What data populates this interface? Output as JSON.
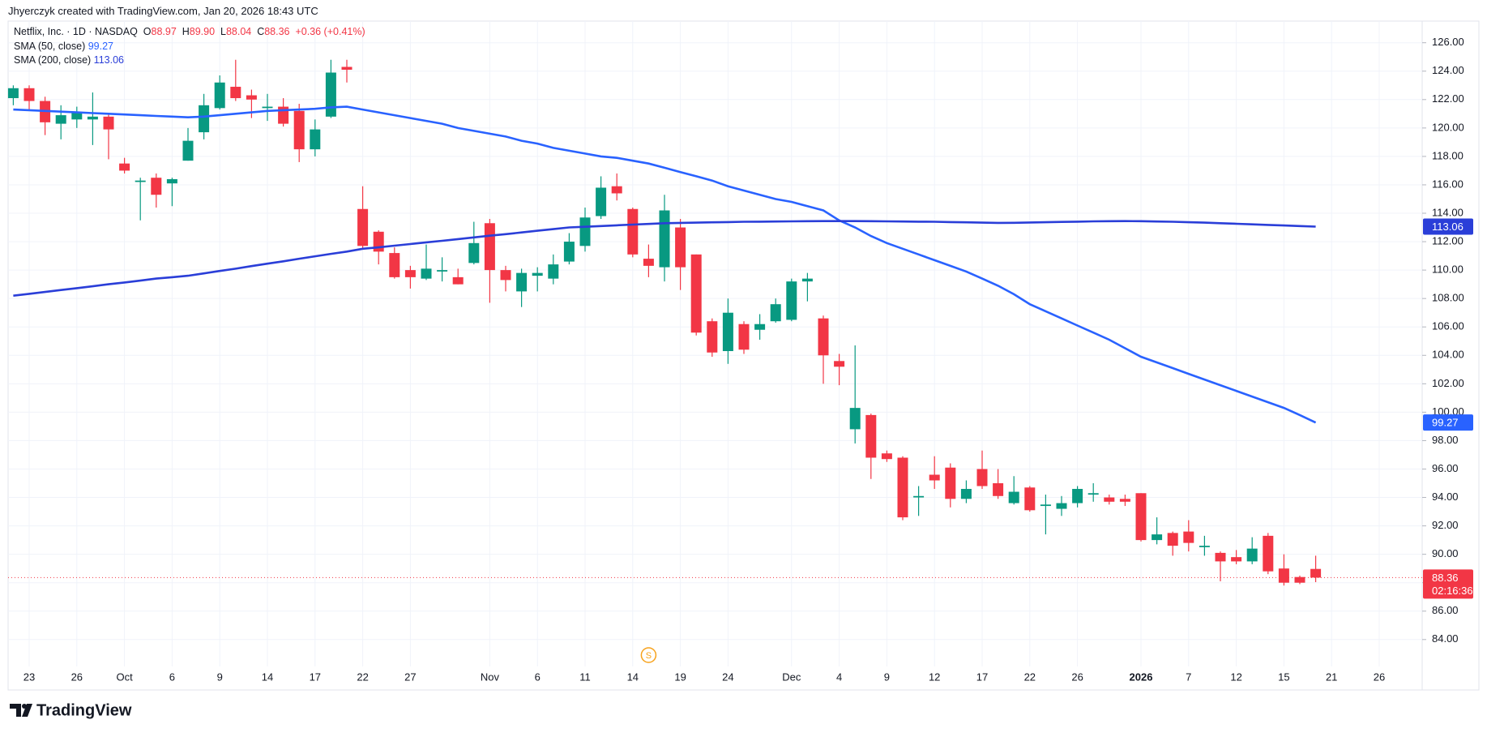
{
  "header": {
    "text": "Jhyerczyk created with TradingView.com, Jan 20, 2026 18:43 UTC"
  },
  "chart_data": {
    "type": "candlestick",
    "symbol": "Netflix, Inc. · 1D · NASDAQ",
    "legend_keys": [
      "O",
      "H",
      "L",
      "C"
    ],
    "last_bar_labels": {
      "open": "88.97",
      "high": "89.90",
      "low": "88.04",
      "close": "88.36",
      "change": "+0.36 (+0.41%)"
    },
    "countdown": "02:16:36",
    "up_color": "#089981",
    "down_color": "#f23645",
    "grid": true,
    "categories": [
      null,
      "23",
      null,
      null,
      "26",
      null,
      null,
      "Oct",
      null,
      null,
      "6",
      null,
      null,
      "9",
      null,
      null,
      "14",
      null,
      null,
      "17",
      null,
      null,
      "22",
      null,
      null,
      "27",
      null,
      null,
      null,
      null,
      "Nov",
      null,
      null,
      "6",
      null,
      null,
      "11",
      null,
      null,
      "14",
      null,
      null,
      "19",
      null,
      null,
      "24",
      null,
      null,
      null,
      "Dec",
      null,
      null,
      "4",
      null,
      null,
      "9",
      null,
      null,
      "12",
      null,
      null,
      "17",
      null,
      null,
      "22",
      null,
      null,
      "26",
      null,
      null,
      null,
      "2026",
      null,
      null,
      "7",
      null,
      null,
      "12",
      null,
      null,
      "15",
      null,
      null,
      "21",
      null,
      null,
      "26"
    ],
    "open": [
      122.1,
      122.8,
      121.9,
      120.3,
      120.6,
      120.6,
      120.8,
      117.5,
      116.2,
      116.5,
      116.1,
      117.7,
      119.7,
      121.4,
      122.9,
      122.3,
      121.4,
      121.5,
      121.2,
      118.5,
      120.8,
      124.3,
      114.3,
      112.7,
      111.2,
      110.0,
      109.4,
      109.9,
      109.5,
      110.5,
      113.3,
      110.0,
      108.5,
      109.6,
      109.4,
      110.6,
      111.7,
      113.8,
      115.9,
      114.3,
      110.8,
      110.2,
      113.0,
      111.1,
      106.4,
      104.3,
      106.2,
      105.8,
      106.4,
      106.5,
      109.2,
      106.6,
      103.6,
      98.8,
      99.8,
      97.1,
      96.8,
      94.0,
      95.6,
      96.1,
      93.9,
      96.0,
      95.0,
      93.6,
      94.7,
      93.4,
      93.2,
      93.6,
      94.2,
      94.0,
      93.9,
      94.3,
      91.0,
      91.5,
      91.6,
      90.5,
      90.1,
      89.8,
      89.5,
      91.3,
      89.0,
      88.4,
      88.97,
      null,
      null,
      null,
      null
    ],
    "high": [
      123.0,
      123.0,
      122.2,
      121.6,
      121.5,
      122.5,
      121.0,
      117.9,
      116.5,
      116.8,
      116.5,
      120.0,
      122.4,
      123.7,
      124.8,
      122.7,
      122.4,
      122.1,
      121.7,
      120.6,
      124.8,
      124.8,
      115.9,
      112.8,
      111.6,
      110.3,
      111.8,
      110.9,
      110.1,
      113.4,
      113.6,
      110.3,
      110.1,
      110.2,
      111.1,
      112.6,
      114.4,
      116.6,
      116.8,
      114.4,
      111.8,
      115.3,
      113.6,
      111.1,
      106.6,
      108.0,
      106.4,
      106.9,
      108.0,
      109.4,
      109.8,
      106.8,
      104.1,
      104.7,
      99.9,
      97.3,
      96.9,
      94.8,
      96.9,
      96.4,
      95.2,
      97.3,
      96.0,
      95.5,
      94.8,
      94.2,
      94.1,
      94.8,
      95.0,
      94.2,
      94.2,
      94.3,
      92.6,
      91.6,
      92.4,
      91.3,
      90.2,
      90.3,
      91.2,
      91.5,
      90.0,
      88.5,
      89.9,
      null,
      null,
      null,
      null
    ],
    "low": [
      121.6,
      121.3,
      119.5,
      119.2,
      120.0,
      118.8,
      117.8,
      116.8,
      113.5,
      114.4,
      114.5,
      117.7,
      119.2,
      121.3,
      121.9,
      120.7,
      120.5,
      120.1,
      117.6,
      118.0,
      120.7,
      123.2,
      111.5,
      110.4,
      109.4,
      108.7,
      109.3,
      109.2,
      109.0,
      110.4,
      107.7,
      108.5,
      107.4,
      108.5,
      109.0,
      110.4,
      111.3,
      113.6,
      114.9,
      110.9,
      109.5,
      109.2,
      108.6,
      105.4,
      103.9,
      103.4,
      104.1,
      105.1,
      106.3,
      106.4,
      107.8,
      102.0,
      101.9,
      97.8,
      95.3,
      96.5,
      92.4,
      92.7,
      94.6,
      93.3,
      93.6,
      94.6,
      93.9,
      93.5,
      93.0,
      91.4,
      92.7,
      93.3,
      93.7,
      93.5,
      93.4,
      90.9,
      90.7,
      89.9,
      90.2,
      89.9,
      88.1,
      89.3,
      89.3,
      88.6,
      87.8,
      87.9,
      88.04,
      null,
      null,
      null,
      null
    ],
    "close": [
      122.8,
      121.9,
      120.4,
      120.9,
      121.1,
      120.8,
      119.9,
      117.0,
      116.3,
      115.3,
      116.4,
      119.1,
      121.6,
      123.2,
      122.1,
      122.0,
      121.5,
      120.3,
      118.5,
      119.9,
      123.9,
      124.1,
      111.7,
      111.3,
      109.5,
      109.5,
      110.1,
      110.0,
      109.0,
      111.9,
      110.0,
      109.3,
      109.8,
      109.8,
      110.4,
      112.0,
      113.7,
      115.8,
      115.4,
      111.1,
      110.3,
      114.2,
      110.2,
      105.6,
      104.2,
      107.0,
      104.4,
      106.2,
      107.6,
      109.2,
      109.4,
      104.0,
      103.2,
      100.3,
      96.8,
      96.7,
      92.6,
      94.1,
      95.2,
      93.9,
      94.6,
      94.8,
      94.1,
      94.4,
      93.1,
      93.5,
      93.6,
      94.6,
      94.3,
      93.7,
      93.7,
      91.0,
      91.4,
      90.6,
      90.8,
      90.6,
      89.5,
      89.5,
      90.4,
      88.8,
      88.0,
      88.0,
      88.36,
      null,
      null,
      null,
      null
    ],
    "series": [
      {
        "name": "SMA (50, close)",
        "color": "#2962ff",
        "values": [
          121.3,
          121.25,
          121.2,
          121.15,
          121.1,
          121.05,
          121.0,
          120.95,
          120.9,
          120.85,
          120.8,
          120.75,
          120.8,
          120.9,
          121.0,
          121.1,
          121.2,
          121.25,
          121.3,
          121.35,
          121.45,
          121.5,
          121.3,
          121.1,
          120.9,
          120.7,
          120.5,
          120.3,
          120.0,
          119.8,
          119.6,
          119.4,
          119.1,
          118.9,
          118.6,
          118.4,
          118.2,
          118.0,
          117.9,
          117.7,
          117.5,
          117.2,
          116.9,
          116.6,
          116.3,
          115.9,
          115.6,
          115.3,
          115.0,
          114.8,
          114.5,
          114.2,
          113.5,
          113.0,
          112.4,
          111.9,
          111.5,
          111.1,
          110.7,
          110.3,
          109.9,
          109.4,
          108.9,
          108.3,
          107.6,
          107.1,
          106.6,
          106.1,
          105.6,
          105.1,
          104.5,
          103.9,
          103.5,
          103.1,
          102.7,
          102.3,
          101.9,
          101.5,
          101.1,
          100.7,
          100.3,
          99.8,
          99.27,
          null,
          null,
          null,
          null
        ]
      },
      {
        "name": "SMA (200, close)",
        "color": "#2a3ed8",
        "values": [
          108.2,
          108.33,
          108.46,
          108.6,
          108.73,
          108.86,
          109.0,
          109.13,
          109.26,
          109.4,
          109.5,
          109.6,
          109.77,
          109.94,
          110.1,
          110.28,
          110.45,
          110.62,
          110.8,
          110.97,
          111.14,
          111.3,
          111.5,
          111.6,
          111.72,
          111.83,
          111.95,
          112.06,
          112.18,
          112.3,
          112.42,
          112.53,
          112.65,
          112.77,
          112.88,
          113.0,
          113.05,
          113.1,
          113.15,
          113.2,
          113.25,
          113.3,
          113.32,
          113.34,
          113.36,
          113.38,
          113.4,
          113.41,
          113.42,
          113.43,
          113.44,
          113.45,
          113.45,
          113.45,
          113.44,
          113.43,
          113.42,
          113.41,
          113.4,
          113.38,
          113.36,
          113.34,
          113.32,
          113.33,
          113.35,
          113.37,
          113.39,
          113.41,
          113.43,
          113.44,
          113.45,
          113.44,
          113.42,
          113.4,
          113.37,
          113.34,
          113.3,
          113.26,
          113.22,
          113.18,
          113.14,
          113.1,
          113.06,
          null,
          null,
          null,
          null
        ]
      }
    ],
    "ylim": [
      84,
      126
    ],
    "yticks": [
      {
        "value": 84,
        "label": "84.00"
      },
      {
        "value": 86,
        "label": "86.00"
      },
      {
        "value": 88,
        "label": "88.00"
      },
      {
        "value": 90,
        "label": "90.00"
      },
      {
        "value": 92,
        "label": "92.00"
      },
      {
        "value": 94,
        "label": "94.00"
      },
      {
        "value": 96,
        "label": "96.00"
      },
      {
        "value": 98,
        "label": "98.00"
      },
      {
        "value": 100,
        "label": "100.00"
      },
      {
        "value": 102,
        "label": "102.00"
      },
      {
        "value": 104,
        "label": "104.00"
      },
      {
        "value": 106,
        "label": "106.00"
      },
      {
        "value": 108,
        "label": "108.00"
      },
      {
        "value": 110,
        "label": "110.00"
      },
      {
        "value": 112,
        "label": "112.00"
      },
      {
        "value": 114,
        "label": "114.00"
      },
      {
        "value": 116,
        "label": "116.00"
      },
      {
        "value": 118,
        "label": "118.00"
      },
      {
        "value": 120,
        "label": "120.00"
      },
      {
        "value": 122,
        "label": "122.00"
      },
      {
        "value": 124,
        "label": "124.00"
      },
      {
        "value": 126,
        "label": "126.00"
      }
    ],
    "markers": [
      {
        "label": "S"
      }
    ]
  },
  "footer": {
    "brand": "TradingView"
  }
}
